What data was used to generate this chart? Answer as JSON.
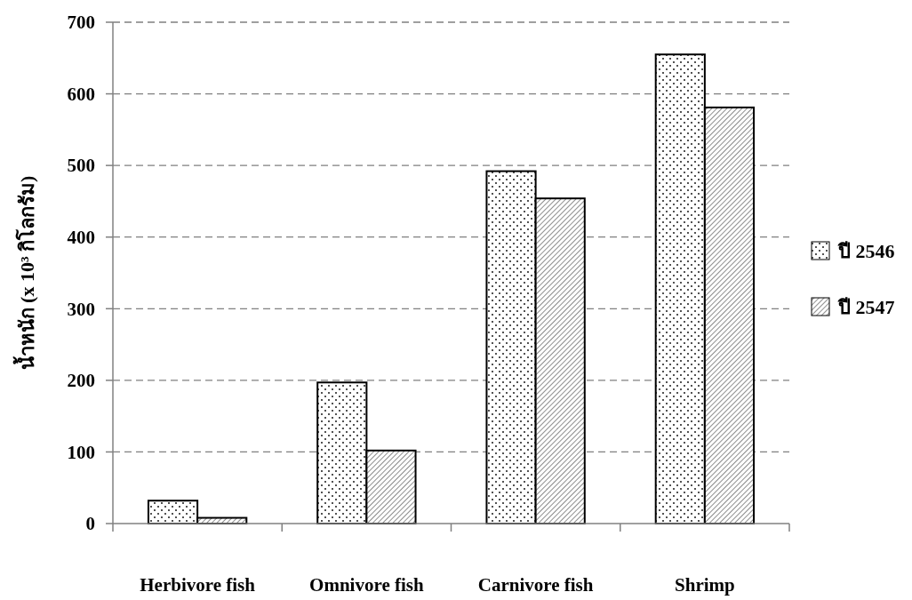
{
  "chart_data": {
    "type": "bar",
    "ylabel": "น้ำหนัก (x 10³ กิโลกรัม)",
    "categories": [
      "Herbivore fish",
      "Omnivore fish",
      "Carnivore fish",
      "Shrimp"
    ],
    "series": [
      {
        "name": "ปี 2546",
        "color": "#000000",
        "values": [
          32,
          197,
          492,
          655
        ]
      },
      {
        "name": "ปี 2547",
        "color": "#000000",
        "values": [
          8,
          102,
          454,
          581
        ]
      }
    ],
    "ylim": [
      0,
      700
    ],
    "yticks": [
      0,
      100,
      200,
      300,
      400,
      500,
      600,
      700
    ],
    "grid": "y",
    "legend": "right"
  }
}
